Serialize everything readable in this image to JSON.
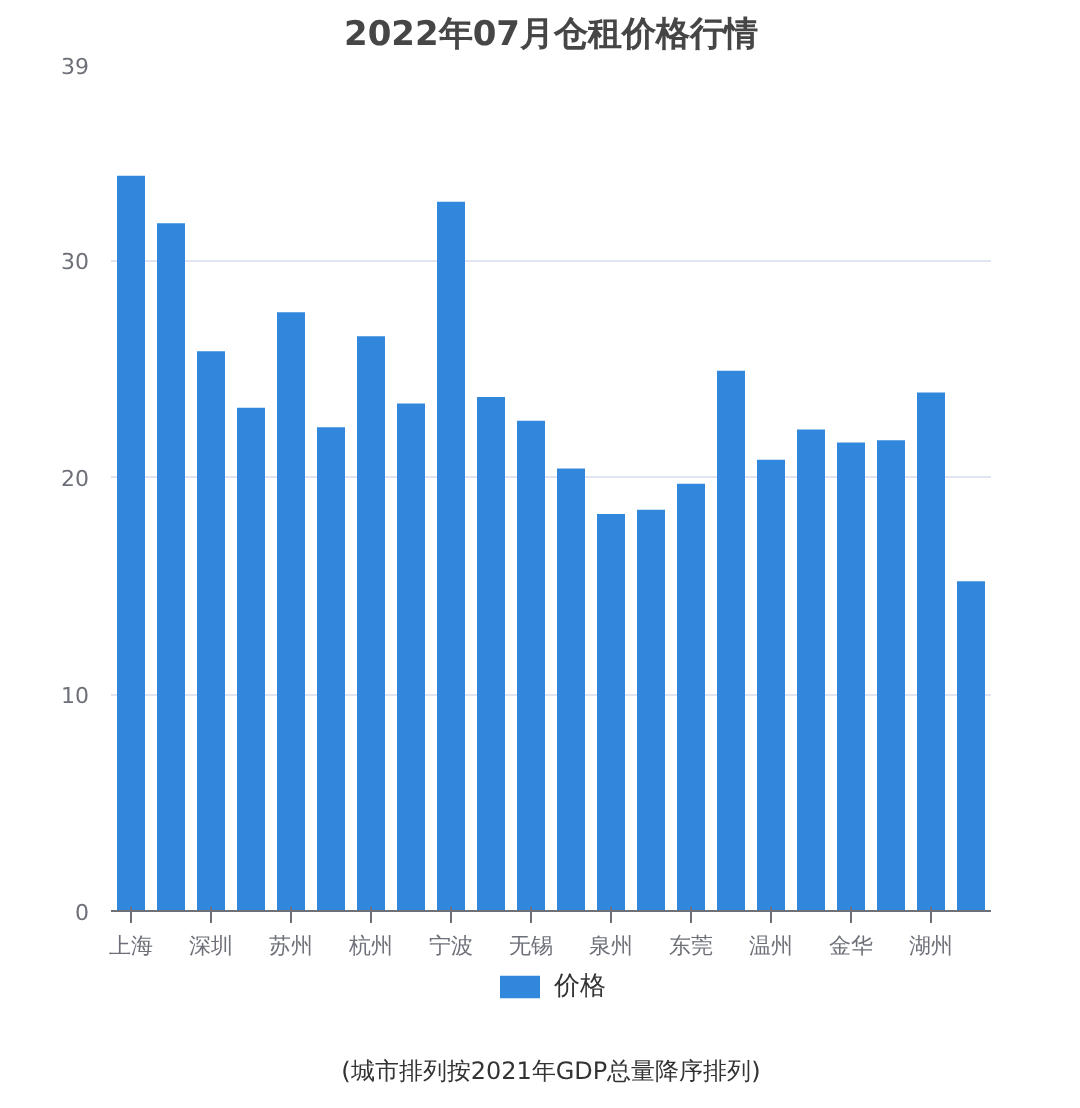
{
  "chart_data": {
    "type": "bar",
    "title": "2022年07月仓租价格行情",
    "categories": [
      "上海",
      null,
      "深圳",
      null,
      "苏州",
      null,
      "杭州",
      null,
      "宁波",
      null,
      "无锡",
      null,
      "泉州",
      null,
      "东莞",
      null,
      "温州",
      null,
      "金华",
      null,
      "湖州",
      null
    ],
    "series": [
      {
        "name": "价格",
        "color": "#3187db",
        "values": [
          33.9,
          31.7,
          25.8,
          23.2,
          27.6,
          22.3,
          26.5,
          23.4,
          32.7,
          23.7,
          22.6,
          20.4,
          18.3,
          18.5,
          19.7,
          24.9,
          20.8,
          22.2,
          21.6,
          21.7,
          23.9,
          15.2
        ]
      }
    ],
    "ylim": [
      0,
      39
    ],
    "yticks": [
      0,
      10,
      20,
      30,
      39
    ],
    "grid": "y",
    "legend": "bottom",
    "annotations": [
      "(城市排列按2021年GDP总量降序排列)"
    ]
  }
}
